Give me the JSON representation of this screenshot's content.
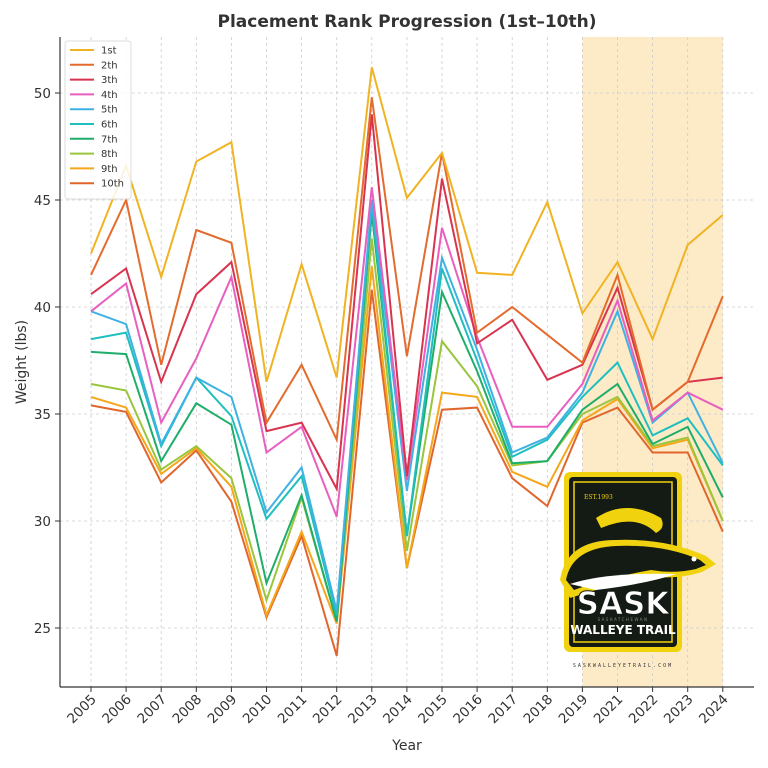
{
  "chart_data": {
    "type": "line",
    "title": "Placement Rank Progression (1st–10th)",
    "xlabel": "Year",
    "ylabel": "Weight (lbs)",
    "ylim": [
      22.2,
      52.6
    ],
    "yticks": [
      25,
      30,
      35,
      40,
      45,
      50
    ],
    "grid": true,
    "legend_position": "upper left",
    "categories": [
      "2005",
      "2006",
      "2007",
      "2008",
      "2009",
      "2010",
      "2011",
      "2012",
      "2013",
      "2014",
      "2015",
      "2016",
      "2017",
      "2018",
      "2019",
      "2021",
      "2022",
      "2023",
      "2024"
    ],
    "highlight_region": {
      "from": "2019",
      "to": "2024",
      "color": "#fdebc8"
    },
    "series": [
      {
        "name": "1st",
        "color": "#f0b323",
        "values": [
          42.5,
          46.6,
          41.4,
          46.8,
          47.7,
          36.5,
          42.0,
          36.7,
          51.2,
          45.1,
          47.2,
          41.6,
          41.5,
          44.9,
          39.7,
          42.1,
          38.5,
          42.9,
          44.3
        ]
      },
      {
        "name": "2th",
        "color": "#e46b2e",
        "values": [
          41.5,
          45.0,
          37.3,
          43.6,
          43.0,
          34.6,
          37.3,
          33.8,
          49.8,
          37.7,
          47.2,
          38.8,
          40.0,
          38.7,
          37.4,
          41.5,
          35.2,
          36.5,
          40.5
        ]
      },
      {
        "name": "3th",
        "color": "#d8344f",
        "values": [
          40.6,
          41.8,
          36.5,
          40.6,
          42.1,
          34.2,
          34.6,
          31.5,
          49.0,
          32.1,
          46.0,
          38.3,
          39.4,
          36.6,
          37.3,
          40.9,
          35.2,
          36.5,
          36.7
        ]
      },
      {
        "name": "4th",
        "color": "#e85fbf",
        "values": [
          39.8,
          41.1,
          34.6,
          37.6,
          41.4,
          33.2,
          34.4,
          30.2,
          45.6,
          31.9,
          43.7,
          38.6,
          34.4,
          34.4,
          36.4,
          40.3,
          34.7,
          36.0,
          35.2
        ]
      },
      {
        "name": "5th",
        "color": "#3fb1e3",
        "values": [
          39.8,
          39.2,
          33.6,
          36.7,
          35.8,
          30.4,
          32.5,
          25.8,
          45.0,
          31.4,
          42.3,
          38.0,
          33.2,
          33.9,
          36.0,
          39.8,
          34.6,
          36.0,
          32.7
        ]
      },
      {
        "name": "6th",
        "color": "#1fbfbf",
        "values": [
          38.5,
          38.8,
          33.5,
          36.7,
          34.9,
          30.1,
          32.1,
          25.6,
          44.8,
          29.3,
          41.8,
          37.5,
          33.0,
          33.8,
          35.8,
          37.4,
          34.0,
          34.8,
          32.6
        ]
      },
      {
        "name": "7th",
        "color": "#1fae6a",
        "values": [
          37.9,
          37.8,
          32.8,
          35.5,
          34.5,
          27.1,
          31.2,
          25.3,
          44.4,
          29.3,
          40.7,
          37.0,
          32.7,
          32.8,
          35.2,
          36.4,
          33.6,
          34.4,
          31.1
        ]
      },
      {
        "name": "8th",
        "color": "#9ac53c",
        "values": [
          36.4,
          36.1,
          32.4,
          33.5,
          32.0,
          26.3,
          31.1,
          25.3,
          43.2,
          28.6,
          38.4,
          36.3,
          32.6,
          32.8,
          35.0,
          35.8,
          33.5,
          33.9,
          30.0
        ]
      },
      {
        "name": "9th",
        "color": "#f5a71b",
        "values": [
          35.8,
          35.3,
          32.2,
          33.4,
          31.6,
          25.6,
          29.5,
          25.2,
          41.9,
          27.8,
          36.0,
          35.8,
          32.3,
          31.6,
          34.7,
          35.7,
          33.4,
          33.8,
          30.0
        ]
      },
      {
        "name": "10th",
        "color": "#e0662c",
        "values": [
          35.4,
          35.1,
          31.8,
          33.3,
          30.9,
          25.5,
          29.3,
          23.7,
          40.8,
          27.8,
          35.2,
          35.3,
          32.0,
          30.7,
          34.6,
          35.3,
          33.2,
          33.2,
          29.5
        ]
      }
    ]
  },
  "logo": {
    "est": "EST.1993",
    "name_big": "SASK",
    "name_sub": "SASKATCHEWAN",
    "name_line2": "WALLEYE TRAIL",
    "website": "SASKWALLEYETRAIL.COM"
  }
}
